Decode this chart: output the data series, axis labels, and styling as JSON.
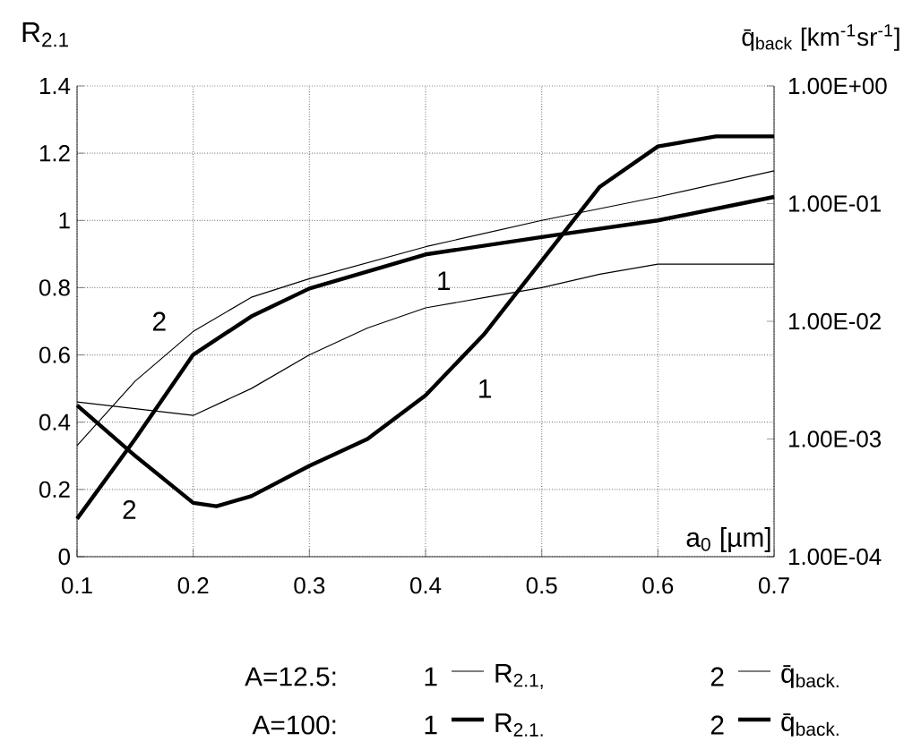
{
  "chart_data": {
    "type": "line",
    "ylabel": "R$_{2.1}$",
    "y2label": "q̄$_{back}$ [km$^{-1}$sr$^{-1}$]",
    "xlabel": "a$_{0}$ [µm]",
    "xlim": [
      0.1,
      0.7
    ],
    "xticks": [
      0.1,
      0.2,
      0.3,
      0.4,
      0.5,
      0.6,
      0.7
    ],
    "ylim": [
      0,
      1.4
    ],
    "yticks": [
      0,
      0.2,
      0.4,
      0.6,
      0.8,
      1,
      1.2,
      1.4
    ],
    "y2lim": [
      0.0001,
      1
    ],
    "y2ticks": [
      {
        "value": 0.0001,
        "label": "1.00E-04"
      },
      {
        "value": 0.001,
        "label": "1.00E-03"
      },
      {
        "value": 0.01,
        "label": "1.00E-02"
      },
      {
        "value": 0.1,
        "label": "1.00E-01"
      },
      {
        "value": 1,
        "label": "1.00E+00"
      }
    ],
    "log": "y2",
    "grid": true,
    "legend": "bottom",
    "series": [
      {
        "name": "R$_{2.1,}$",
        "color": "#000000",
        "axis": "y",
        "x": [
          0.1,
          0.15,
          0.2,
          0.25,
          0.3,
          0.35,
          0.4,
          0.45,
          0.5,
          0.55,
          0.6,
          0.65,
          0.7
        ],
        "values": [
          0.46,
          0.44,
          0.42,
          0.5,
          0.6,
          0.68,
          0.74,
          0.77,
          0.8,
          0.84,
          0.87,
          0.87,
          0.87
        ]
      },
      {
        "name": "q̄$_{back.}$",
        "color": "#000000",
        "axis": "y2",
        "x": [
          0.1,
          0.15,
          0.2,
          0.25,
          0.3,
          0.4,
          0.5,
          0.6,
          0.7
        ],
        "values": [
          0.00088,
          0.0031,
          0.0082,
          0.016,
          0.023,
          0.043,
          0.072,
          0.114,
          0.19
        ]
      },
      {
        "name": "R$_{2.1.}$",
        "color": "#000000",
        "axis": "y",
        "x": [
          0.1,
          0.15,
          0.2,
          0.22,
          0.25,
          0.3,
          0.35,
          0.4,
          0.45,
          0.5,
          0.55,
          0.6,
          0.65,
          0.7
        ],
        "values": [
          0.45,
          0.3,
          0.16,
          0.15,
          0.18,
          0.27,
          0.35,
          0.48,
          0.66,
          0.88,
          1.1,
          1.22,
          1.25,
          1.25
        ]
      },
      {
        "name": "q̄$_{back.}$",
        "color": "#000000",
        "axis": "y2",
        "x": [
          0.1,
          0.15,
          0.2,
          0.25,
          0.3,
          0.4,
          0.5,
          0.6,
          0.7
        ],
        "values": [
          0.00021,
          0.001,
          0.0052,
          0.011,
          0.019,
          0.037,
          0.052,
          0.072,
          0.114
        ]
      }
    ],
    "annotations": [
      "A=12.5:",
      "A=100:",
      "1",
      "2",
      "1",
      "2",
      "1",
      "1",
      "2",
      "2"
    ]
  }
}
